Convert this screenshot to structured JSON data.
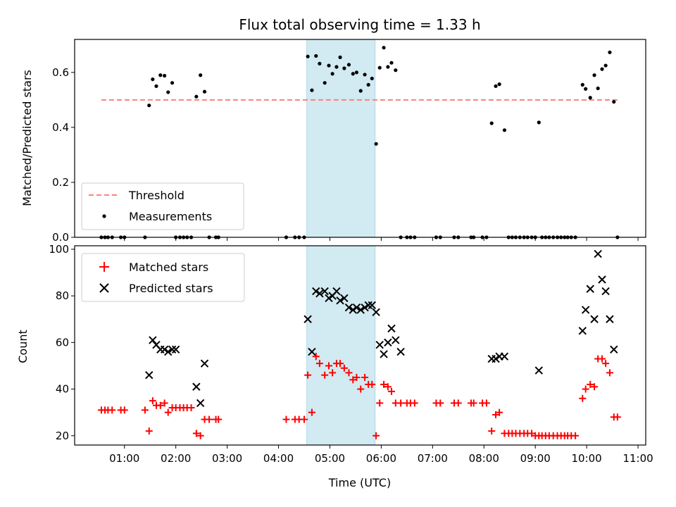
{
  "chart_data": {
    "type": "scatter",
    "title": "Flux total observing time = 1.33 h",
    "xlabel": "Time (UTC)",
    "x_unit": "hours UTC",
    "xlim": [
      0.03,
      11.15
    ],
    "x_ticks": [
      1,
      2,
      3,
      4,
      5,
      6,
      7,
      8,
      9,
      10,
      11
    ],
    "x_tick_labels": [
      "01:00",
      "02:00",
      "03:00",
      "04:00",
      "05:00",
      "06:00",
      "07:00",
      "08:00",
      "09:00",
      "10:00",
      "11:00"
    ],
    "highlight_span": {
      "x_start": 4.55,
      "x_end": 5.88,
      "color": "#add8e6"
    },
    "panels": [
      {
        "id": "ratio",
        "ylabel": "Matched/Predicted stars",
        "ylim": [
          0,
          0.72
        ],
        "y_ticks": [
          0.0,
          0.2,
          0.4,
          0.6
        ],
        "y_tick_labels": [
          "0.0",
          "0.2",
          "0.4",
          "0.6"
        ],
        "legend_position": "lower-left",
        "series": [
          {
            "name": "Threshold",
            "kind": "dashed-line",
            "color": "#ff7f7f",
            "x": [
              0.55,
              10.65
            ],
            "y": [
              0.5,
              0.5
            ]
          },
          {
            "name": "Measurements",
            "kind": "dot",
            "color": "#000000",
            "x": [
              0.55,
              0.62,
              0.68,
              0.76,
              0.93,
              1.0,
              1.4,
              1.48,
              1.55,
              1.62,
              1.7,
              1.78,
              1.85,
              1.93,
              2.0,
              2.08,
              2.15,
              2.22,
              2.3,
              2.4,
              2.48,
              2.56,
              2.65,
              2.78,
              2.83,
              4.15,
              4.32,
              4.4,
              4.5,
              4.57,
              4.65,
              4.73,
              4.8,
              4.9,
              4.98,
              5.05,
              5.13,
              5.2,
              5.28,
              5.37,
              5.45,
              5.52,
              5.6,
              5.68,
              5.75,
              5.82,
              5.9,
              5.97,
              6.05,
              6.13,
              6.2,
              6.28,
              6.38,
              6.5,
              6.57,
              6.65,
              7.07,
              7.15,
              7.42,
              7.5,
              7.75,
              7.8,
              7.97,
              8.05,
              8.15,
              8.23,
              8.3,
              8.4,
              8.48,
              8.55,
              8.62,
              8.7,
              8.78,
              8.85,
              8.93,
              9.0,
              9.07,
              9.13,
              9.2,
              9.27,
              9.35,
              9.43,
              9.5,
              9.57,
              9.63,
              9.7,
              9.78,
              9.92,
              9.98,
              10.07,
              10.15,
              10.22,
              10.3,
              10.37,
              10.45,
              10.53,
              10.6
            ],
            "y": [
              0,
              0,
              0,
              0,
              0,
              0,
              0,
              0.48,
              0.575,
              0.55,
              0.59,
              0.588,
              0.528,
              0.562,
              0,
              0,
              0,
              0,
              0,
              0.512,
              0.59,
              0.53,
              0,
              0,
              0,
              0,
              0,
              0,
              0,
              0.658,
              0.535,
              0.66,
              0.632,
              0.562,
              0.625,
              0.595,
              0.62,
              0.655,
              0.615,
              0.628,
              0.595,
              0.6,
              0.533,
              0.592,
              0.555,
              0.578,
              0.34,
              0.617,
              0.69,
              0.62,
              0.635,
              0.608,
              0,
              0,
              0,
              0,
              0,
              0,
              0,
              0,
              0,
              0,
              0,
              0,
              0.415,
              0.55,
              0.557,
              0.39,
              0,
              0,
              0,
              0,
              0,
              0,
              0,
              0,
              0.418,
              0,
              0,
              0,
              0,
              0,
              0,
              0,
              0,
              0,
              0,
              0.555,
              0.54,
              0.508,
              0.59,
              0.542,
              0.612,
              0.625,
              0.673,
              0.493,
              0
            ]
          }
        ]
      },
      {
        "id": "counts",
        "ylabel": "Count",
        "ylim": [
          16,
          101.5
        ],
        "y_ticks": [
          20,
          40,
          60,
          80,
          100
        ],
        "y_tick_labels": [
          "20",
          "40",
          "60",
          "80",
          "100"
        ],
        "legend_position": "upper-left",
        "series": [
          {
            "name": "Matched stars",
            "kind": "plus",
            "color": "#ff0000",
            "x": [
              0.55,
              0.62,
              0.68,
              0.76,
              0.93,
              1.0,
              1.4,
              1.48,
              1.55,
              1.62,
              1.7,
              1.78,
              1.85,
              1.93,
              2.0,
              2.08,
              2.15,
              2.22,
              2.3,
              2.4,
              2.48,
              2.56,
              2.65,
              2.78,
              2.83,
              4.15,
              4.32,
              4.4,
              4.5,
              4.57,
              4.65,
              4.73,
              4.8,
              4.9,
              4.98,
              5.05,
              5.13,
              5.2,
              5.28,
              5.37,
              5.45,
              5.52,
              5.6,
              5.68,
              5.75,
              5.82,
              5.9,
              5.97,
              6.05,
              6.13,
              6.2,
              6.28,
              6.38,
              6.5,
              6.57,
              6.65,
              7.07,
              7.15,
              7.42,
              7.5,
              7.75,
              7.8,
              7.97,
              8.05,
              8.15,
              8.23,
              8.3,
              8.4,
              8.48,
              8.55,
              8.62,
              8.7,
              8.78,
              8.85,
              8.93,
              9.0,
              9.07,
              9.13,
              9.2,
              9.27,
              9.35,
              9.43,
              9.5,
              9.57,
              9.63,
              9.7,
              9.78,
              9.92,
              9.98,
              10.07,
              10.15,
              10.22,
              10.3,
              10.37,
              10.45,
              10.53,
              10.6
            ],
            "y": [
              31,
              31,
              31,
              31,
              31,
              31,
              31,
              22,
              35,
              33,
              33,
              34,
              30,
              32,
              32,
              32,
              32,
              32,
              32,
              21,
              20,
              27,
              27,
              27,
              27,
              27,
              27,
              27,
              27,
              46,
              30,
              54,
              51,
              46,
              50,
              47,
              51,
              51,
              49,
              47,
              44,
              45,
              40,
              45,
              42,
              42,
              20,
              34,
              42,
              41,
              39,
              34,
              34,
              34,
              34,
              34,
              34,
              34,
              34,
              34,
              34,
              34,
              34,
              34,
              22,
              29,
              30,
              21,
              21,
              21,
              21,
              21,
              21,
              21,
              21,
              20,
              20,
              20,
              20,
              20,
              20,
              20,
              20,
              20,
              20,
              20,
              20,
              36,
              40,
              42,
              41,
              53,
              53,
              51,
              47,
              28,
              28
            ]
          },
          {
            "name": "Predicted stars",
            "kind": "x",
            "color": "#000000",
            "x": [
              1.48,
              1.55,
              1.62,
              1.7,
              1.78,
              1.85,
              1.93,
              2.0,
              2.4,
              2.48,
              2.56,
              4.57,
              4.65,
              4.73,
              4.8,
              4.9,
              4.98,
              5.05,
              5.13,
              5.2,
              5.28,
              5.37,
              5.45,
              5.52,
              5.6,
              5.68,
              5.75,
              5.82,
              5.9,
              5.97,
              6.05,
              6.13,
              6.2,
              6.28,
              6.38,
              8.15,
              8.23,
              8.3,
              8.4,
              9.07,
              9.92,
              9.98,
              10.07,
              10.15,
              10.22,
              10.3,
              10.37,
              10.45,
              10.53
            ],
            "y": [
              46,
              61,
              59,
              57,
              57,
              56,
              57,
              57,
              41,
              34,
              51,
              70,
              56,
              82,
              81,
              82,
              79,
              80,
              82,
              78,
              79,
              75,
              74,
              75,
              74,
              75,
              76,
              76,
              73,
              59,
              55,
              60,
              66,
              61,
              56,
              53,
              53,
              54,
              54,
              48,
              65,
              74,
              83,
              70,
              98,
              87,
              82,
              70,
              57
            ]
          }
        ]
      }
    ]
  }
}
